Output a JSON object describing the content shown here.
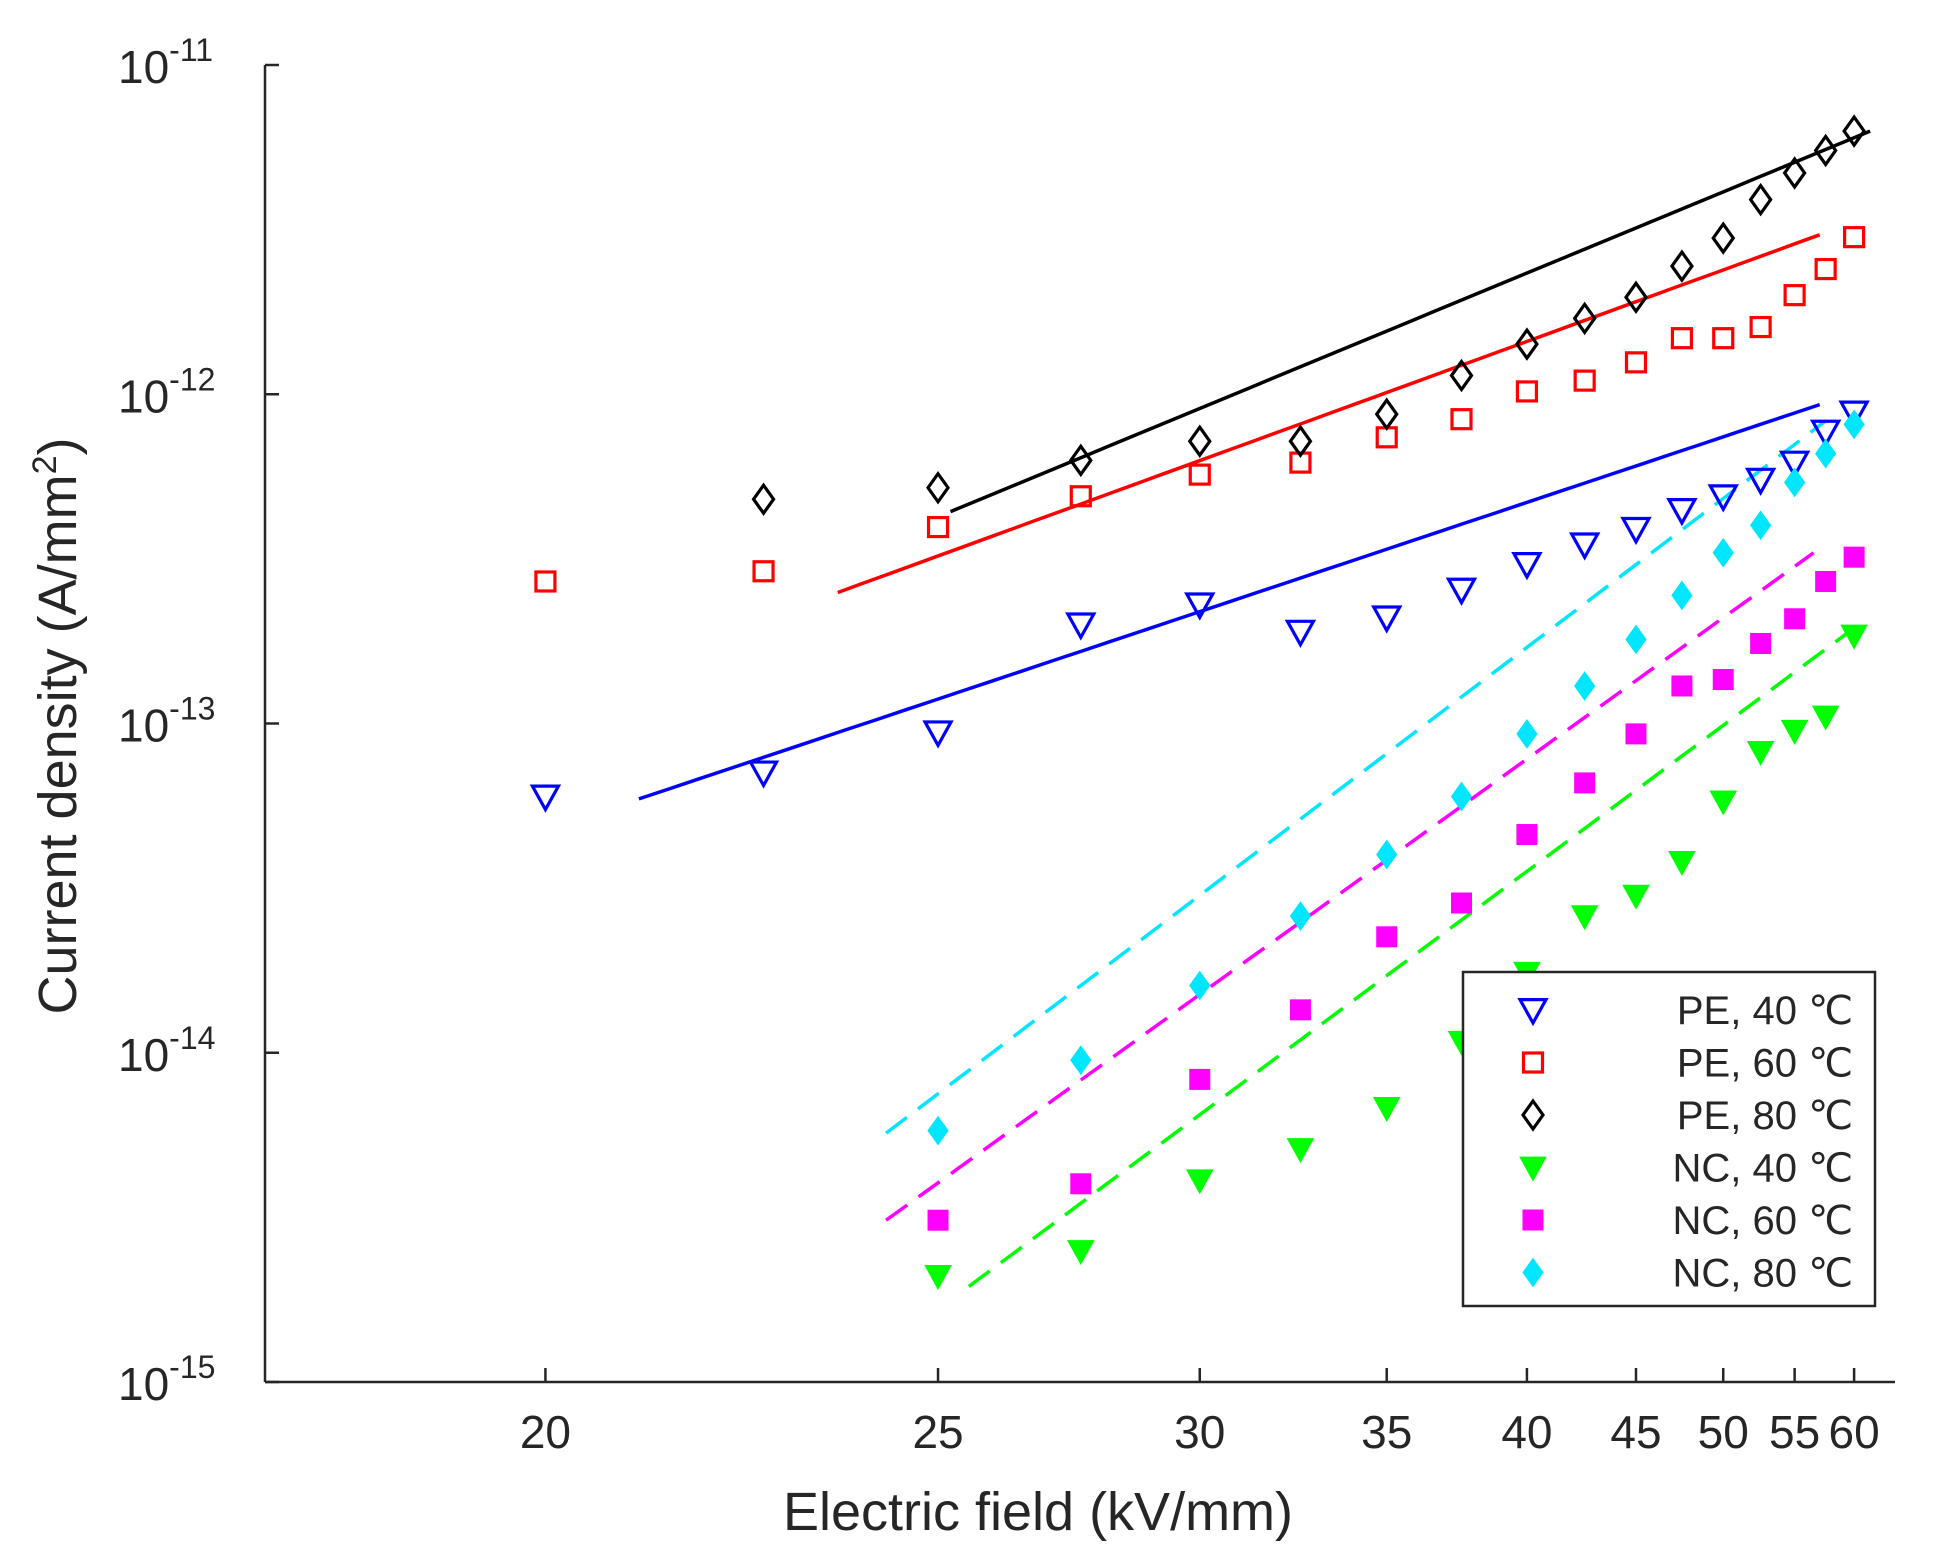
{
  "chart_data": {
    "type": "scatter",
    "x_scale": "reciprocal",
    "y_scale": "log",
    "xlabel": "Electric field (kV/mm)",
    "ylabel": "Current density (A/mm²)",
    "xlim": [
      17.5,
      64
    ],
    "ylim": [
      1e-15,
      1e-11
    ],
    "x_ticks": [
      20,
      25,
      30,
      35,
      40,
      45,
      50,
      55,
      60
    ],
    "y_ticks": [
      {
        "value": 1e-15,
        "mantissa": "10",
        "exponent": "-15"
      },
      {
        "value": 1e-14,
        "mantissa": "10",
        "exponent": "-14"
      },
      {
        "value": 1e-13,
        "mantissa": "10",
        "exponent": "-13"
      },
      {
        "value": 1e-12,
        "mantissa": "10",
        "exponent": "-12"
      },
      {
        "value": 1e-11,
        "mantissa": "10",
        "exponent": "-11"
      }
    ],
    "grid": false,
    "legend_position": "bottom-right",
    "series": [
      {
        "name": "PE, 40 ℃",
        "marker": "triangle-down-open",
        "color": "#0000ff",
        "x": [
          20,
          22.5,
          25,
          27.5,
          30,
          32.5,
          35,
          37.5,
          40,
          42.5,
          45,
          47.5,
          50,
          52.5,
          55,
          57.5,
          60
        ],
        "y": [
          6e-14,
          7.1e-14,
          9.4e-14,
          2e-13,
          2.3e-13,
          1.9e-13,
          2.1e-13,
          2.55e-13,
          3.05e-13,
          3.5e-13,
          3.9e-13,
          4.45e-13,
          4.9e-13,
          5.5e-13,
          6.2e-13,
          7.7e-13,
          8.8e-13
        ],
        "fit": {
          "x": [
            21,
            57
          ],
          "y": [
            5.9e-14,
            9.3e-13
          ]
        }
      },
      {
        "name": "PE, 60 ℃",
        "marker": "square-open",
        "color": "#ff0000",
        "x": [
          20,
          22.5,
          25,
          27.5,
          30,
          32.5,
          35,
          37.5,
          40,
          42.5,
          45,
          47.5,
          50,
          52.5,
          55,
          57.5,
          60
        ],
        "y": [
          2.7e-13,
          2.9e-13,
          3.95e-13,
          4.9e-13,
          5.7e-13,
          6.2e-13,
          7.4e-13,
          8.4e-13,
          1.02e-12,
          1.1e-12,
          1.25e-12,
          1.48e-12,
          1.48e-12,
          1.6e-12,
          2e-12,
          2.4e-12,
          3e-12
        ],
        "fit": {
          "x": [
            23.5,
            57
          ],
          "y": [
            2.5e-13,
            3.05e-12
          ]
        }
      },
      {
        "name": "PE, 80 ℃",
        "marker": "diamond-open",
        "color": "#000000",
        "x": [
          22.5,
          25,
          27.5,
          30,
          32.5,
          35,
          37.5,
          40,
          42.5,
          45,
          47.5,
          50,
          52.5,
          55,
          57.5,
          60
        ],
        "y": [
          4.8e-13,
          5.2e-13,
          6.3e-13,
          7.2e-13,
          7.2e-13,
          8.7e-13,
          1.14e-12,
          1.42e-12,
          1.7e-12,
          1.97e-12,
          2.45e-12,
          2.98e-12,
          3.9e-12,
          4.7e-12,
          5.5e-12,
          6.3e-12
        ],
        "fit": {
          "x": [
            25.2,
            61.5
          ],
          "y": [
            4.4e-13,
            6.3e-12
          ]
        }
      },
      {
        "name": "NC, 40 ℃",
        "marker": "triangle-down-filled",
        "color": "#00ff00",
        "x": [
          25,
          27.5,
          30,
          32.5,
          35,
          37.5,
          40,
          42.5,
          45,
          47.5,
          50,
          52.5,
          55,
          57.5,
          60
        ],
        "y": [
          2.1e-15,
          2.5e-15,
          4.1e-15,
          5.1e-15,
          6.8e-15,
          1.08e-14,
          1.75e-14,
          2.6e-14,
          3e-14,
          3.8e-14,
          5.8e-14,
          8.2e-14,
          9.5e-14,
          1.05e-13,
          1.85e-13
        ],
        "fit": {
          "x": [
            25.5,
            60
          ],
          "y": [
            1.95e-15,
            1.95e-13
          ]
        }
      },
      {
        "name": "NC, 60 ℃",
        "marker": "square-filled",
        "color": "#ff00ff",
        "x": [
          25,
          27.5,
          30,
          32.5,
          35,
          37.5,
          40,
          42.5,
          45,
          47.5,
          50,
          52.5,
          55,
          57.5,
          60
        ],
        "y": [
          3.1e-15,
          4e-15,
          8.3e-15,
          1.35e-14,
          2.25e-14,
          2.85e-14,
          4.6e-14,
          6.6e-14,
          9.3e-14,
          1.3e-13,
          1.36e-13,
          1.75e-13,
          2.08e-13,
          2.7e-13,
          3.2e-13
        ],
        "fit": {
          "x": [
            24.2,
            56.5
          ],
          "y": [
            3.1e-15,
            3.3e-13
          ]
        }
      },
      {
        "name": "NC, 80 ℃",
        "marker": "diamond-filled",
        "color": "#00e6ff",
        "x": [
          25,
          27.5,
          30,
          32.5,
          35,
          37.5,
          40,
          42.5,
          45,
          47.5,
          50,
          52.5,
          55,
          57.5,
          60
        ],
        "y": [
          5.8e-15,
          9.5e-15,
          1.6e-14,
          2.6e-14,
          4e-14,
          6e-14,
          9.3e-14,
          1.3e-13,
          1.8e-13,
          2.45e-13,
          3.3e-13,
          4e-13,
          5.4e-13,
          6.6e-13,
          8.1e-13
        ],
        "fit": {
          "x": [
            24.2,
            57.5
          ],
          "y": [
            5.7e-15,
            8.3e-13
          ]
        }
      }
    ]
  }
}
